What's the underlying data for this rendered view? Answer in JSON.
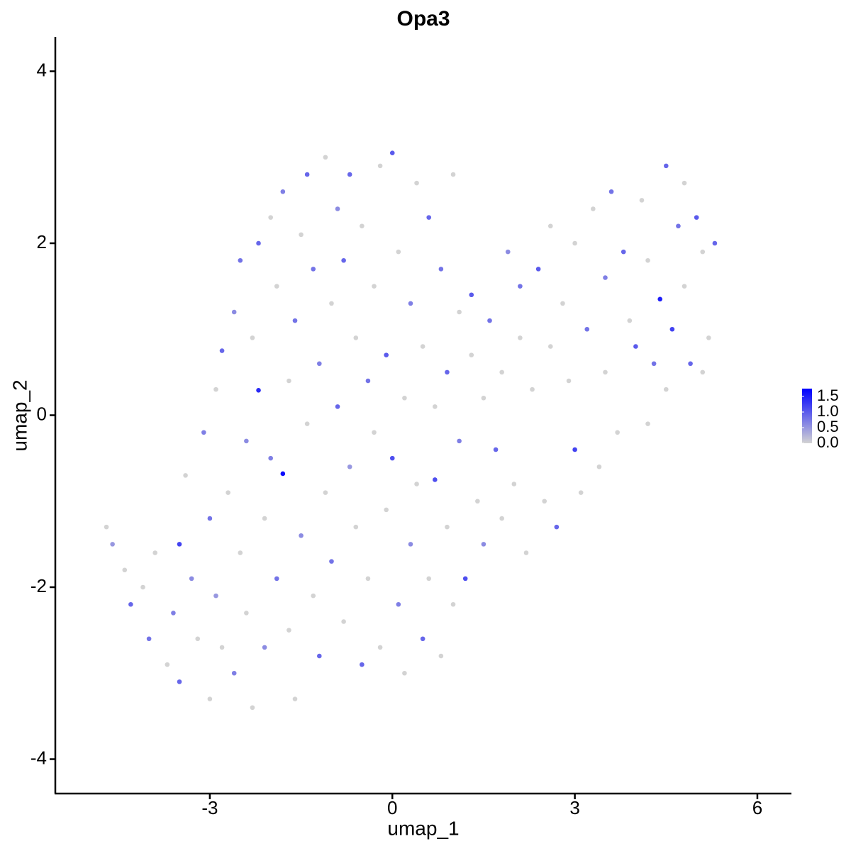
{
  "chart_data": {
    "type": "scatter",
    "title": "Opa3",
    "x_label": "umap_1",
    "y_label": "umap_2",
    "xlim": [
      -5.54,
      6.56
    ],
    "ylim": [
      -4.4,
      4.4
    ],
    "xticks": [
      -3,
      0,
      3,
      6
    ],
    "yticks": [
      -4,
      -2,
      0,
      2,
      4
    ],
    "color_scale": {
      "low_color": "#d3d3d3",
      "high_color": "#0000ff",
      "lim": [
        0,
        1.75
      ],
      "ticks": [
        {
          "value": 0,
          "label": "0.0"
        },
        0.5,
        {
          "value": 1,
          "label": "1.0"
        },
        1.5
      ]
    },
    "x": [
      -4.7,
      -4.6,
      -4.4,
      -4.3,
      -4.1,
      -4.0,
      -3.9,
      -3.7,
      -3.6,
      -3.5,
      -3.5,
      -3.4,
      -3.3,
      -3.2,
      -3.1,
      -3.0,
      -3.0,
      -2.9,
      -2.9,
      -2.8,
      -2.8,
      -2.7,
      -2.6,
      -2.6,
      -2.5,
      -2.5,
      -2.4,
      -2.4,
      -2.3,
      -2.3,
      -2.2,
      -2.2,
      -2.1,
      -2.1,
      -2.0,
      -2.0,
      -1.9,
      -1.9,
      -1.8,
      -1.8,
      -1.7,
      -1.7,
      -1.6,
      -1.6,
      -1.5,
      -1.5,
      -1.4,
      -1.4,
      -1.3,
      -1.3,
      -1.2,
      -1.2,
      -1.1,
      -1.1,
      -1.0,
      -1.0,
      -0.9,
      -0.9,
      -0.8,
      -0.8,
      -0.7,
      -0.7,
      -0.6,
      -0.6,
      -0.5,
      -0.5,
      -0.4,
      -0.4,
      -0.3,
      -0.3,
      -0.2,
      -0.2,
      -0.1,
      -0.1,
      0.0,
      0.0,
      0.1,
      0.1,
      0.2,
      0.2,
      0.3,
      0.3,
      0.4,
      0.4,
      0.5,
      0.5,
      0.6,
      0.6,
      0.7,
      0.7,
      0.8,
      0.8,
      0.9,
      0.9,
      1.0,
      1.0,
      1.1,
      1.1,
      1.2,
      1.3,
      1.3,
      1.4,
      1.5,
      1.5,
      1.6,
      1.7,
      1.8,
      1.8,
      1.9,
      2.0,
      2.1,
      2.1,
      2.2,
      2.3,
      2.4,
      2.5,
      2.6,
      2.6,
      2.7,
      2.8,
      2.9,
      3.0,
      3.0,
      3.1,
      3.2,
      3.3,
      3.4,
      3.5,
      3.5,
      3.6,
      3.7,
      3.8,
      3.9,
      4.0,
      4.1,
      4.2,
      4.2,
      4.3,
      4.4,
      4.5,
      4.5,
      4.6,
      4.7,
      4.8,
      4.9,
      5.0,
      5.1,
      5.2,
      5.3,
      4.8,
      5.1
    ],
    "y": [
      -1.3,
      -1.5,
      -1.8,
      -2.2,
      -2.0,
      -2.6,
      -1.6,
      -2.9,
      -2.3,
      -1.5,
      -3.1,
      -0.7,
      -1.9,
      -2.6,
      -0.2,
      -3.3,
      -1.2,
      0.3,
      -2.1,
      0.75,
      -2.7,
      -0.9,
      1.2,
      -3.0,
      -1.6,
      1.8,
      -0.3,
      -2.3,
      0.9,
      -3.4,
      0.29,
      2.0,
      -1.2,
      -2.7,
      2.3,
      -0.5,
      1.5,
      -1.9,
      -0.68,
      2.6,
      -2.5,
      0.4,
      1.1,
      -3.3,
      2.1,
      -1.4,
      -0.1,
      2.8,
      1.7,
      -2.1,
      0.6,
      -2.8,
      -0.9,
      3.0,
      1.3,
      -1.7,
      2.4,
      0.1,
      -2.4,
      1.8,
      -0.6,
      2.8,
      -1.3,
      0.9,
      -2.9,
      2.2,
      0.4,
      -1.9,
      1.5,
      -0.2,
      2.9,
      -2.7,
      0.7,
      -1.1,
      3.05,
      -0.5,
      1.9,
      -2.2,
      0.2,
      -3.0,
      1.3,
      -1.5,
      2.7,
      -0.8,
      0.8,
      -2.6,
      2.3,
      -1.9,
      0.1,
      -0.75,
      1.7,
      -2.8,
      -1.3,
      0.5,
      2.8,
      -2.2,
      1.2,
      -0.3,
      -1.9,
      0.7,
      1.4,
      -1.0,
      0.2,
      -1.5,
      1.1,
      -0.4,
      0.5,
      -1.2,
      1.9,
      -0.8,
      0.9,
      1.5,
      -1.6,
      0.3,
      1.7,
      -1.0,
      0.8,
      2.2,
      -1.3,
      1.3,
      0.4,
      -0.4,
      2.0,
      -0.9,
      1.0,
      2.4,
      -0.6,
      1.6,
      0.5,
      2.6,
      -0.2,
      1.9,
      1.1,
      0.8,
      2.5,
      1.8,
      -0.1,
      0.6,
      1.35,
      2.9,
      0.3,
      1.0,
      2.2,
      1.5,
      0.6,
      2.3,
      1.9,
      0.9,
      2.0,
      2.7,
      0.5
    ],
    "values": [
      0,
      0.5,
      0,
      0.9,
      0,
      0.8,
      0,
      0,
      0.7,
      1.2,
      0.9,
      0,
      0.6,
      0,
      0.7,
      0,
      0.8,
      0,
      0.5,
      0.9,
      0,
      0,
      0.6,
      0.7,
      0,
      0.8,
      0.6,
      0,
      0,
      0,
      1.4,
      0.9,
      0,
      0.6,
      0,
      0.7,
      0,
      0.8,
      1.65,
      0.7,
      0,
      0,
      0.8,
      0,
      0,
      0.6,
      0,
      0.9,
      0.8,
      0,
      0.7,
      0.9,
      0,
      0,
      0,
      0.8,
      0.6,
      0.9,
      0,
      0.9,
      0.5,
      0.9,
      0,
      0,
      0.9,
      0,
      0.8,
      0,
      0,
      0,
      0,
      0,
      1.0,
      0,
      1.0,
      1.1,
      0,
      0.7,
      0,
      0,
      0.7,
      0.6,
      0,
      0,
      0,
      0.9,
      0.9,
      0,
      0,
      1.1,
      0.8,
      0,
      0,
      0.9,
      0,
      0,
      0,
      0.7,
      1.1,
      0,
      1.0,
      0,
      0,
      0.6,
      0.8,
      0.9,
      0,
      0,
      0.6,
      0,
      0,
      0.8,
      0,
      0,
      1.0,
      0,
      0,
      0,
      0.9,
      0,
      0,
      1.2,
      0,
      0,
      0.8,
      0,
      0,
      0.7,
      0,
      0.8,
      0,
      0.9,
      0,
      1.0,
      0,
      0,
      0,
      0.8,
      1.5,
      0.9,
      0,
      1.2,
      0.8,
      0,
      0.9,
      1.0,
      0,
      0,
      0.9,
      0,
      0
    ]
  }
}
